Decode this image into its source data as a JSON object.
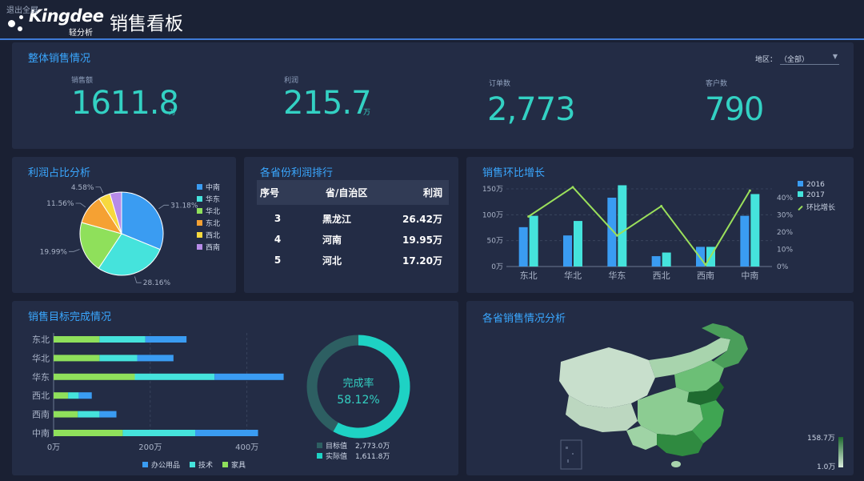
{
  "header": {
    "exit_fullscreen": "退出全屏",
    "brand": "Kingdee",
    "brand_sub": "轻分析",
    "title": "销售看板"
  },
  "overview": {
    "title": "整体销售情况",
    "region_label": "地区：",
    "region_value": "（全部）",
    "kpis": [
      {
        "label": "销售额",
        "value": "1611.8",
        "unit": "万"
      },
      {
        "label": "利润",
        "value": "215.7",
        "unit": "万"
      },
      {
        "label": "订单数",
        "value": "2,773",
        "unit": ""
      },
      {
        "label": "客户数",
        "value": "790",
        "unit": ""
      }
    ]
  },
  "profit_share": {
    "title": "利润占比分析",
    "legend": [
      {
        "name": "中南",
        "color": "#3a9cf2"
      },
      {
        "name": "华东",
        "color": "#45e3dc"
      },
      {
        "name": "华北",
        "color": "#8fe05b"
      },
      {
        "name": "东北",
        "color": "#f5a133"
      },
      {
        "name": "西北",
        "color": "#f7d93e"
      },
      {
        "name": "西南",
        "color": "#b78be8"
      }
    ]
  },
  "ranking": {
    "title": "各省份利润排行",
    "headers": [
      "序号",
      "省/自治区",
      "利润"
    ],
    "rows": [
      {
        "rank": "3",
        "province": "黑龙江",
        "profit": "26.42万"
      },
      {
        "rank": "4",
        "province": "河南",
        "profit": "19.95万"
      },
      {
        "rank": "5",
        "province": "河北",
        "profit": "17.20万"
      }
    ]
  },
  "growth": {
    "title": "销售环比增长",
    "legend": [
      {
        "name": "2016",
        "color": "#3a9cf2"
      },
      {
        "name": "2017",
        "color": "#45e3dc"
      },
      {
        "name": "环比增长",
        "color": "#9be05b"
      }
    ]
  },
  "target": {
    "title": "销售目标完成情况",
    "legend": [
      {
        "name": "办公用品",
        "color": "#3a9cf2"
      },
      {
        "name": "技术",
        "color": "#45e3dc"
      },
      {
        "name": "家具",
        "color": "#8fe05b"
      }
    ],
    "gauge_label": "完成率",
    "gauge_value": "58.12%",
    "gauge_fraction": 0.5812,
    "target_label": "目标值",
    "target_value": "2,773.0万",
    "actual_label": "实际值",
    "actual_value": "1,611.8万"
  },
  "map": {
    "title": "各省销售情况分析",
    "scale_max": "158.7万",
    "scale_min": "1.0万"
  },
  "chart_data": [
    {
      "type": "pie",
      "title": "利润占比分析",
      "categories": [
        "中南",
        "华东",
        "华北",
        "东北",
        "西北",
        "西南"
      ],
      "values": [
        31.18,
        28.16,
        19.99,
        11.56,
        4.58,
        4.53
      ],
      "labels": [
        "31.18%",
        "28.16%",
        "19.99%",
        "11.56%",
        "4.58%",
        ""
      ],
      "legend": "right"
    },
    {
      "type": "bar",
      "title": "销售环比增长",
      "categories": [
        "东北",
        "华北",
        "华东",
        "西北",
        "西南",
        "中南"
      ],
      "series": [
        {
          "name": "2016",
          "values": [
            76,
            60,
            133,
            20,
            38,
            98
          ]
        },
        {
          "name": "2017",
          "values": [
            98,
            88,
            157,
            27,
            38,
            140
          ]
        },
        {
          "name": "环比增长",
          "axis": "right",
          "line": true,
          "values": [
            29,
            46,
            18,
            35,
            1,
            44
          ]
        }
      ],
      "y_ticks": [
        "0万",
        "50万",
        "100万",
        "150万"
      ],
      "ylim": [
        0,
        150
      ],
      "y2_ticks": [
        "0%",
        "10%",
        "20%",
        "30%",
        "40%"
      ],
      "y2lim": [
        0,
        45
      ],
      "legend": "top-right"
    },
    {
      "type": "bar",
      "title": "销售目标完成情况",
      "orientation": "horizontal",
      "stacked": true,
      "categories": [
        "东北",
        "华北",
        "华东",
        "西北",
        "西南",
        "中南"
      ],
      "series": [
        {
          "name": "家具",
          "values": [
            95,
            95,
            168,
            30,
            50,
            143
          ]
        },
        {
          "name": "技术",
          "values": [
            95,
            78,
            165,
            22,
            45,
            150
          ]
        },
        {
          "name": "办公用品",
          "values": [
            85,
            75,
            143,
            27,
            35,
            130
          ]
        }
      ],
      "x_ticks": [
        "0万",
        "200万",
        "400万"
      ],
      "xlim": [
        0,
        480
      ],
      "legend": "bottom"
    }
  ]
}
